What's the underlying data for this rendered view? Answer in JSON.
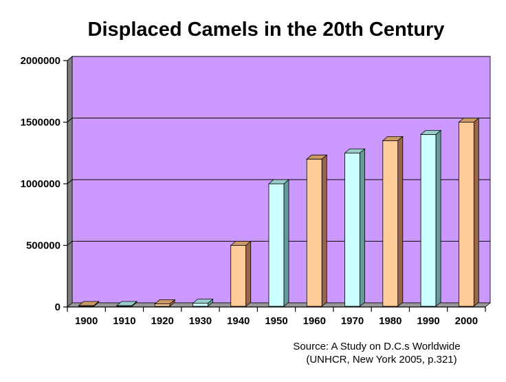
{
  "chart_data": {
    "type": "bar",
    "title": "Displaced Camels in the 20th Century",
    "xlabel": "",
    "ylabel": "",
    "categories": [
      "1900",
      "1910",
      "1920",
      "1930",
      "1940",
      "1950",
      "1960",
      "1970",
      "1980",
      "1990",
      "2000"
    ],
    "values": [
      0,
      0,
      25000,
      30000,
      500000,
      1000000,
      1200000,
      1250000,
      1350000,
      1400000,
      1500000
    ],
    "ylim": [
      0,
      2000000
    ],
    "yticks": [
      "0",
      "500000",
      "1000000",
      "1500000",
      "2000000"
    ],
    "grid": true,
    "legend": "none",
    "style": "3d-column",
    "colors": {
      "plot_background": "#cc99ff",
      "floor": "#999999",
      "wall_side": "#808080",
      "gridline": "#000000",
      "bar_peach": "#ffcc99",
      "bar_peach_top": "#cc9966",
      "bar_peach_side": "#99664d",
      "bar_cyan": "#ccffff",
      "bar_cyan_top": "#99cccc",
      "bar_cyan_side": "#669999"
    },
    "bar_color_sequence": [
      "peach",
      "cyan",
      "peach",
      "cyan",
      "peach",
      "cyan",
      "peach",
      "cyan",
      "peach",
      "cyan",
      "peach"
    ]
  },
  "source": {
    "line1": "Source: A Study on D.C.s Worldwide",
    "line2": "(UNHCR, New York 2005, p.321)"
  }
}
